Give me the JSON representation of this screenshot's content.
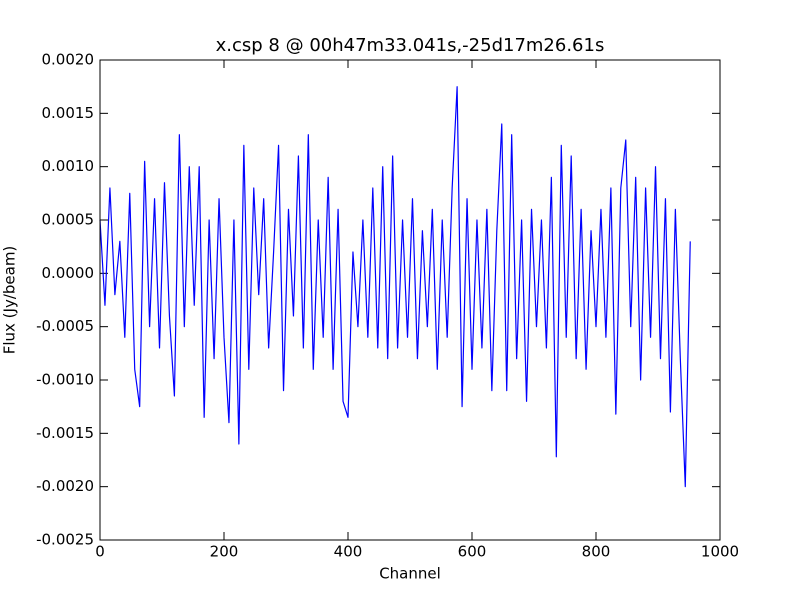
{
  "chart_data": {
    "type": "line",
    "title": "x.csp 8 @ 00h47m33.041s,-25d17m26.61s",
    "x_label": "Channel",
    "y_label": "Flux (Jy/beam)",
    "color": "#0000ff",
    "x": [
      0,
      8,
      16,
      24,
      32,
      40,
      48,
      56,
      64,
      72,
      80,
      88,
      96,
      104,
      112,
      120,
      128,
      136,
      144,
      152,
      160,
      168,
      176,
      184,
      192,
      200,
      208,
      216,
      224,
      232,
      240,
      248,
      256,
      264,
      272,
      280,
      288,
      296,
      304,
      312,
      320,
      328,
      336,
      344,
      352,
      360,
      368,
      376,
      384,
      392,
      400,
      408,
      416,
      424,
      432,
      440,
      448,
      456,
      464,
      472,
      480,
      488,
      496,
      504,
      512,
      520,
      528,
      536,
      544,
      552,
      560,
      568,
      576,
      584,
      592,
      600,
      608,
      616,
      624,
      632,
      640,
      648,
      656,
      664,
      672,
      680,
      688,
      696,
      704,
      712,
      720,
      728,
      736,
      744,
      752,
      760,
      768,
      776,
      784,
      792,
      800,
      808,
      816,
      824,
      832,
      840,
      848,
      856,
      864,
      872,
      880,
      888,
      896,
      904,
      912,
      920,
      928,
      936,
      944,
      952
    ],
    "values": [
      0.0005,
      -0.0003,
      0.0008,
      -0.0002,
      0.0003,
      -0.0006,
      0.00075,
      -0.0009,
      -0.00125,
      0.00105,
      -0.0005,
      0.0007,
      -0.0007,
      0.00085,
      -0.0004,
      -0.00115,
      0.0013,
      -0.0005,
      0.001,
      -0.0003,
      0.001,
      -0.00135,
      0.0005,
      -0.0008,
      0.0007,
      -0.0006,
      -0.0014,
      0.0005,
      -0.0016,
      0.0012,
      -0.0009,
      0.0008,
      -0.0002,
      0.0007,
      -0.0007,
      0.0002,
      0.0012,
      -0.0011,
      0.0006,
      -0.0004,
      0.0011,
      -0.0007,
      0.0013,
      -0.0009,
      0.0005,
      -0.0006,
      0.0009,
      -0.0009,
      0.0006,
      -0.0012,
      -0.00135,
      0.0002,
      -0.0005,
      0.0005,
      -0.0006,
      0.0008,
      -0.0007,
      0.001,
      -0.0008,
      0.0011,
      -0.0007,
      0.0005,
      -0.0006,
      0.0007,
      -0.0008,
      0.0004,
      -0.0005,
      0.0006,
      -0.0009,
      0.0005,
      -0.0006,
      0.0008,
      0.00175,
      -0.00125,
      0.0007,
      -0.0009,
      0.0005,
      -0.0007,
      0.0006,
      -0.0011,
      0.0004,
      0.0014,
      -0.0011,
      0.0013,
      -0.0008,
      0.0005,
      -0.0012,
      0.0006,
      -0.0005,
      0.0005,
      -0.0007,
      0.0009,
      -0.00172,
      0.0012,
      -0.0006,
      0.0011,
      -0.0008,
      0.0006,
      -0.0009,
      0.0004,
      -0.0005,
      0.0006,
      -0.0006,
      0.0008,
      -0.00132,
      0.0008,
      0.00125,
      -0.0005,
      0.0009,
      -0.001,
      0.0008,
      -0.0006,
      0.001,
      -0.0008,
      0.0007,
      -0.0013,
      0.0006,
      -0.0008,
      -0.002,
      0.0003
    ],
    "xlim": [
      0,
      1000
    ],
    "xticks": [
      0,
      200,
      400,
      600,
      800,
      1000
    ],
    "ylim": [
      -0.0025,
      0.002
    ],
    "yticks": [
      {
        "value": -0.0025,
        "label": "-0.0025"
      },
      {
        "value": -0.002,
        "label": "-0.0020"
      },
      {
        "value": -0.0015,
        "label": "-0.0015"
      },
      {
        "value": -0.001,
        "label": "-0.0010"
      },
      {
        "value": -0.0005,
        "label": "-0.0005"
      },
      {
        "value": 0,
        "label": "0.0000"
      },
      {
        "value": 0.0005,
        "label": "0.0005"
      },
      {
        "value": 0.001,
        "label": "0.0010"
      },
      {
        "value": 0.0015,
        "label": "0.0015"
      },
      {
        "value": 0.002,
        "label": "0.0020"
      }
    ]
  }
}
